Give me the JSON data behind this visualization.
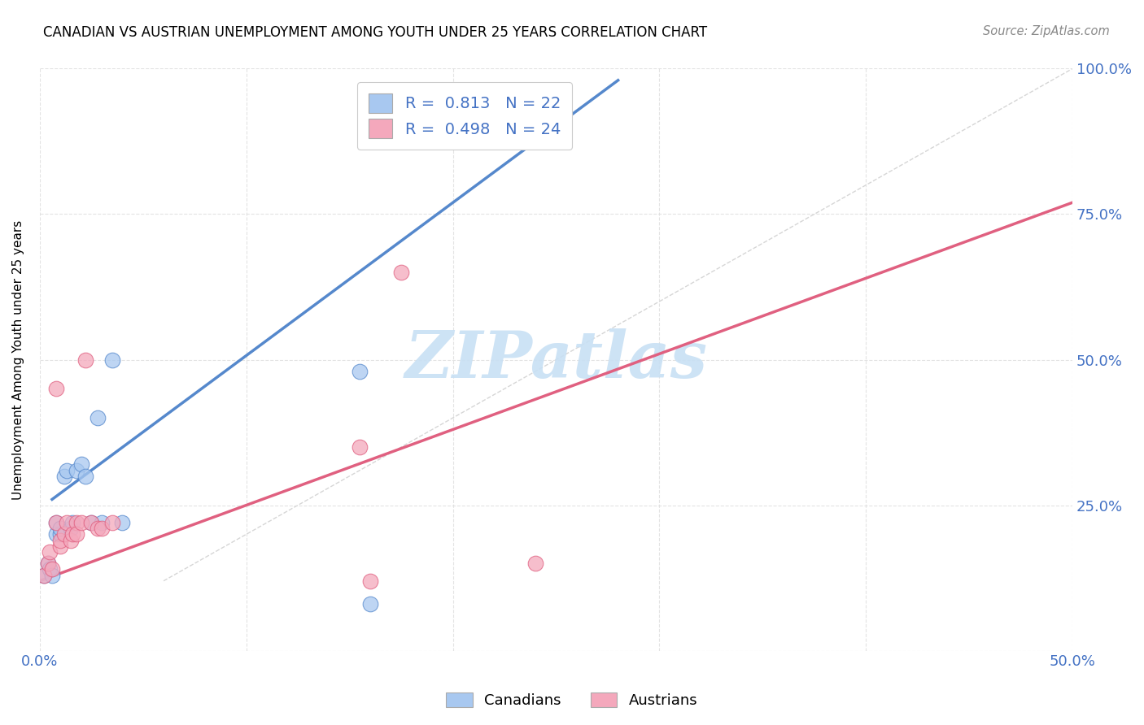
{
  "title": "CANADIAN VS AUSTRIAN UNEMPLOYMENT AMONG YOUTH UNDER 25 YEARS CORRELATION CHART",
  "source": "Source: ZipAtlas.com",
  "ylabel": "Unemployment Among Youth under 25 years",
  "xlabel": "",
  "xlim": [
    0.0,
    0.5
  ],
  "ylim": [
    0.0,
    1.0
  ],
  "x_ticks": [
    0.0,
    0.1,
    0.2,
    0.3,
    0.4,
    0.5
  ],
  "x_tick_labels": [
    "0.0%",
    "",
    "",
    "",
    "",
    "50.0%"
  ],
  "y_ticks": [
    0.0,
    0.25,
    0.5,
    0.75,
    1.0
  ],
  "y_tick_labels": [
    "",
    "25.0%",
    "50.0%",
    "75.0%",
    "100.0%"
  ],
  "canadian_R": "0.813",
  "canadian_N": "22",
  "austrian_R": "0.498",
  "austrian_N": "24",
  "canadian_color": "#A8C8F0",
  "austrian_color": "#F4A8BC",
  "canadian_line_color": "#5588CC",
  "austrian_line_color": "#E06080",
  "diagonal_color": "#BBBBBB",
  "watermark_color": "#C8E0F4",
  "watermark": "ZIPatlas",
  "canadians_x": [
    0.002,
    0.004,
    0.005,
    0.006,
    0.008,
    0.008,
    0.01,
    0.01,
    0.012,
    0.013,
    0.015,
    0.016,
    0.018,
    0.02,
    0.022,
    0.025,
    0.028,
    0.03,
    0.035,
    0.04,
    0.155,
    0.16
  ],
  "canadians_y": [
    0.13,
    0.15,
    0.14,
    0.13,
    0.2,
    0.22,
    0.2,
    0.21,
    0.3,
    0.31,
    0.21,
    0.22,
    0.31,
    0.32,
    0.3,
    0.22,
    0.4,
    0.22,
    0.5,
    0.22,
    0.48,
    0.08
  ],
  "austrians_x": [
    0.002,
    0.004,
    0.005,
    0.006,
    0.008,
    0.008,
    0.01,
    0.01,
    0.012,
    0.013,
    0.015,
    0.016,
    0.018,
    0.018,
    0.02,
    0.022,
    0.025,
    0.028,
    0.03,
    0.035,
    0.155,
    0.16,
    0.175,
    0.24
  ],
  "austrians_y": [
    0.13,
    0.15,
    0.17,
    0.14,
    0.22,
    0.45,
    0.18,
    0.19,
    0.2,
    0.22,
    0.19,
    0.2,
    0.22,
    0.2,
    0.22,
    0.5,
    0.22,
    0.21,
    0.21,
    0.22,
    0.35,
    0.12,
    0.65,
    0.15
  ],
  "canadian_line_x": [
    0.006,
    0.28
  ],
  "canadian_line_y": [
    0.26,
    0.98
  ],
  "austrian_line_x": [
    0.0,
    0.5
  ],
  "austrian_line_y": [
    0.12,
    0.77
  ],
  "diagonal_line_x": [
    0.06,
    0.5
  ],
  "diagonal_line_y": [
    0.12,
    1.0
  ],
  "marker_size": 180
}
